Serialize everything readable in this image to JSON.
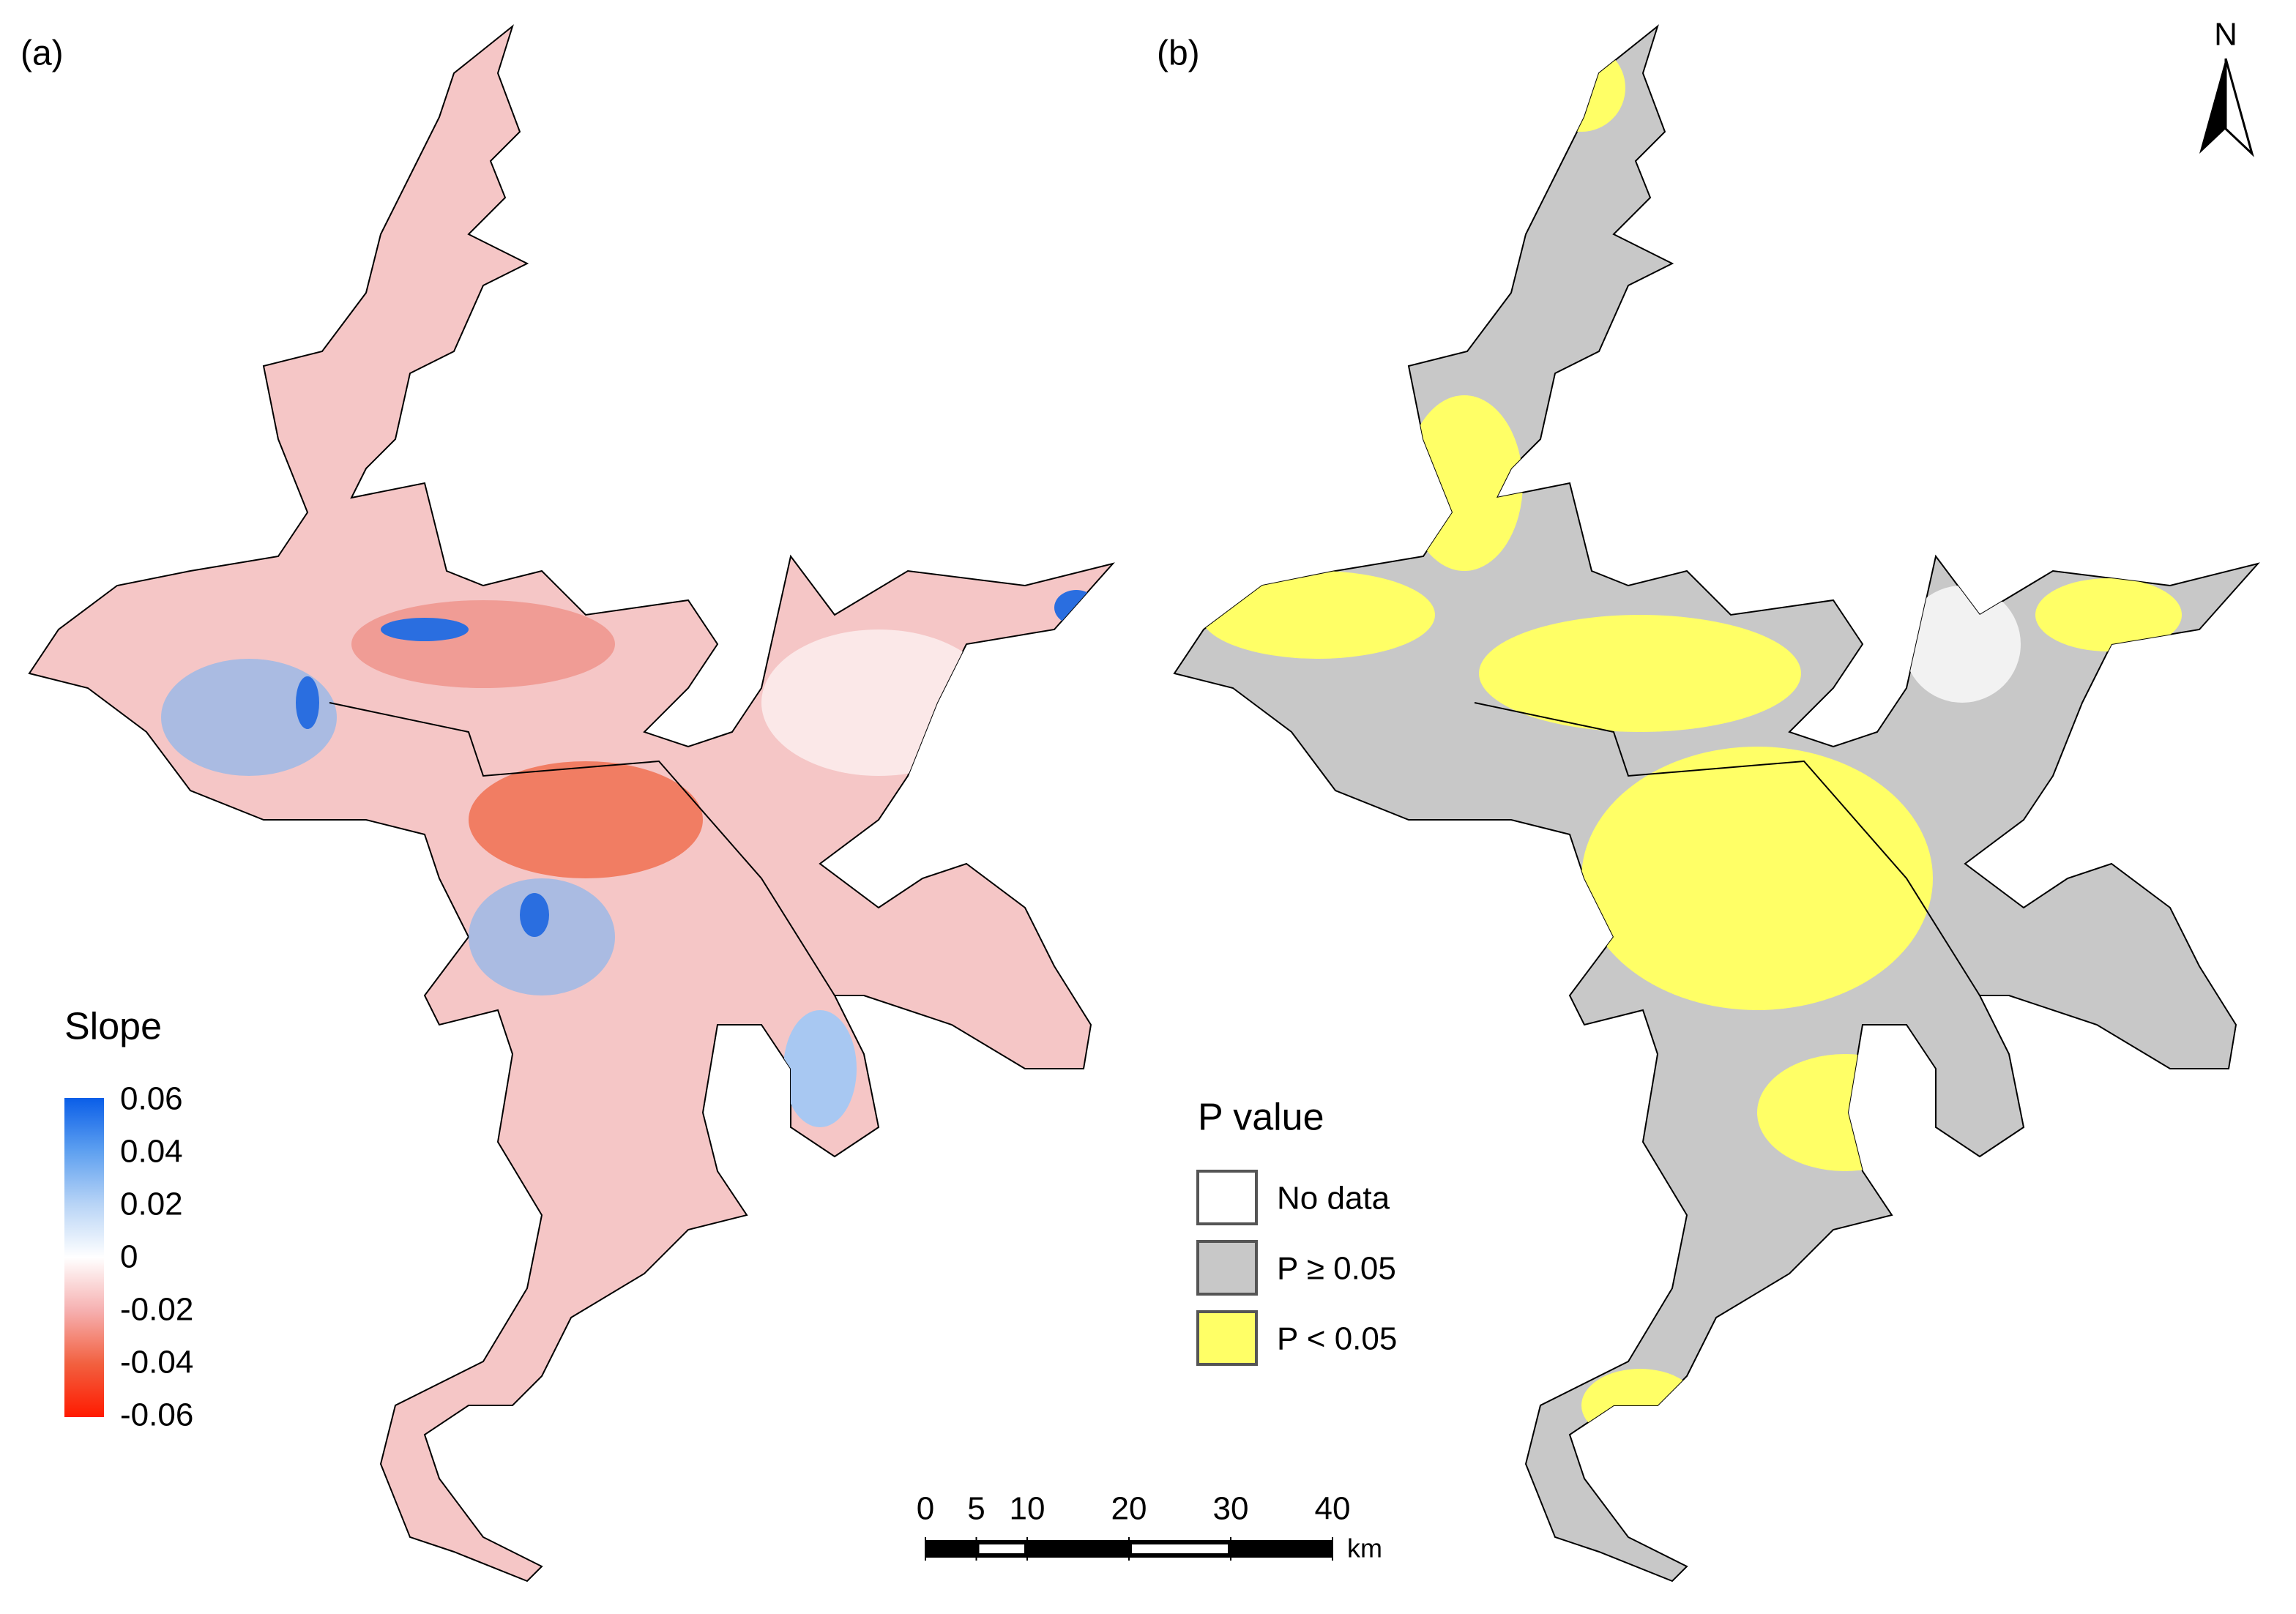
{
  "panels": [
    {
      "label": "(a)"
    },
    {
      "label": "(b)"
    }
  ],
  "slope_legend": {
    "title": "Slope",
    "ticks": [
      0.06,
      0.04,
      0.02,
      0,
      -0.02,
      -0.04,
      -0.06
    ],
    "colors": [
      "#0a5ee8",
      "#5ea0f0",
      "#b8d4f6",
      "#ffffff",
      "#f6b0b0",
      "#f2603f",
      "#ff1a00"
    ]
  },
  "p_legend": {
    "title": "P value",
    "items": [
      {
        "label": "No data",
        "color": "#ffffff"
      },
      {
        "label": "P ≥ 0.05",
        "color": "#c8c8c8"
      },
      {
        "label": "P < 0.05",
        "color": "#ffff66"
      }
    ]
  },
  "scale_bar": {
    "ticks": [
      0,
      5,
      10,
      20,
      30,
      40
    ],
    "unit": "km"
  },
  "north": "N"
}
